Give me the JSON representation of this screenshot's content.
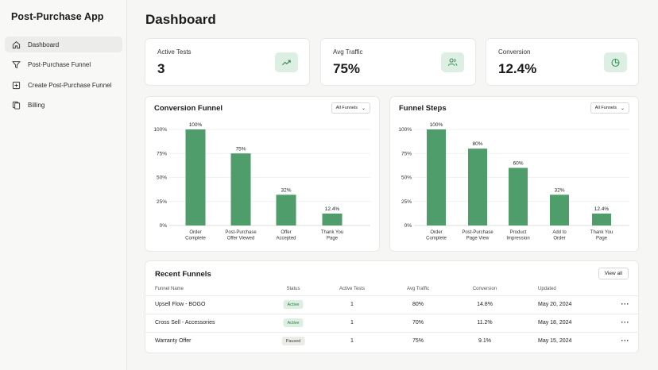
{
  "app": {
    "title": "Post-Purchase App"
  },
  "sidebar": {
    "items": [
      {
        "label": "Dashboard",
        "icon": "home-icon",
        "active": true
      },
      {
        "label": "Post-Purchase Funnel",
        "icon": "funnel-icon",
        "active": false
      },
      {
        "label": "Create Post-Purchase Funnel",
        "icon": "plus-square-icon",
        "active": false
      },
      {
        "label": "Billing",
        "icon": "documents-icon",
        "active": false
      }
    ]
  },
  "page": {
    "title": "Dashboard"
  },
  "stats": [
    {
      "label": "Active Tests",
      "value": "3",
      "icon": "trend-up-icon"
    },
    {
      "label": "Avg Traffic",
      "value": "75%",
      "icon": "users-icon"
    },
    {
      "label": "Conversion",
      "value": "12.4%",
      "icon": "pie-chart-icon"
    }
  ],
  "colors": {
    "accent": "#4f9d6a",
    "accent_light": "#dcefe2"
  },
  "chart_data": [
    {
      "type": "bar",
      "title": "Conversion Funnel",
      "filter": "All Funnels",
      "categories": [
        [
          "Order",
          "Complete"
        ],
        [
          "Post-Purchase",
          "Offer Viewed"
        ],
        [
          "Offer",
          "Accepted"
        ],
        [
          "Thank You",
          "Page"
        ]
      ],
      "values": [
        100,
        75,
        32,
        12.4
      ],
      "data_labels": [
        "100%",
        "75%",
        "32%",
        "12.4%"
      ],
      "yticks": [
        "100%",
        "75%",
        "50%",
        "25%",
        "0%"
      ],
      "ylim": [
        0,
        100
      ]
    },
    {
      "type": "bar",
      "title": "Funnel Steps",
      "filter": "All Funnels",
      "categories": [
        [
          "Order",
          "Complete"
        ],
        [
          "Post-Purchase",
          "Page View"
        ],
        [
          "Product",
          "Impression"
        ],
        [
          "Add to",
          "Order"
        ],
        [
          "Thank You",
          "Page"
        ]
      ],
      "values": [
        100,
        80,
        60,
        32,
        12.4
      ],
      "data_labels": [
        "100%",
        "80%",
        "60%",
        "32%",
        "12.4%"
      ],
      "yticks": [
        "100%",
        "75%",
        "50%",
        "25%",
        "0%"
      ],
      "ylim": [
        0,
        100
      ]
    }
  ],
  "recent": {
    "title": "Recent Funnels",
    "view_all": "View all",
    "headers": [
      "Funnel Name",
      "Status",
      "Active Tests",
      "Avg Traffic",
      "Conversion",
      "Updated"
    ],
    "rows": [
      {
        "name": "Upsell Flow - BOGO",
        "status": "Active",
        "tests": "1",
        "traffic": "80%",
        "conversion": "14.8%",
        "updated": "May 20, 2024",
        "more": "···"
      },
      {
        "name": "Cross Sell - Accessories",
        "status": "Active",
        "tests": "1",
        "traffic": "70%",
        "conversion": "11.2%",
        "updated": "May 18, 2024",
        "more": "···"
      },
      {
        "name": "Warranty Offer",
        "status": "Paused",
        "tests": "1",
        "traffic": "75%",
        "conversion": "9.1%",
        "updated": "May 15, 2024",
        "more": "···"
      }
    ]
  }
}
